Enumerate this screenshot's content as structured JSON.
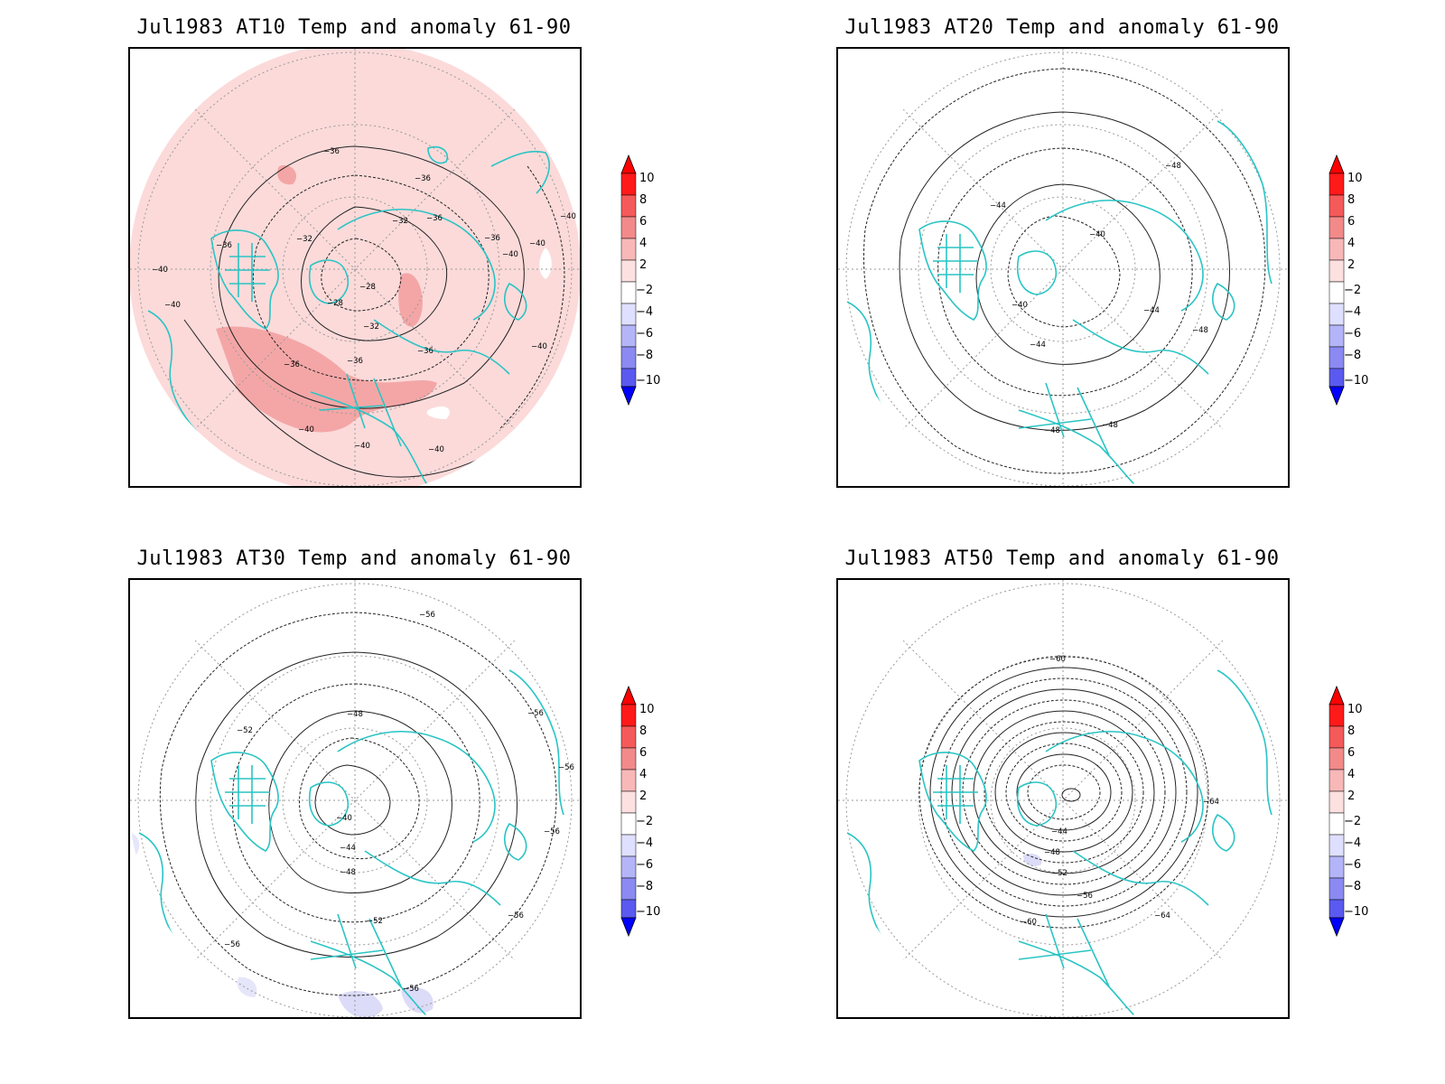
{
  "colorbar": {
    "ticks": [
      "10",
      "8",
      "6",
      "4",
      "2",
      "−2",
      "−4",
      "−6",
      "−8",
      "−10"
    ],
    "colors": [
      "#ff1a1a",
      "#f55a5a",
      "#f28a8a",
      "#f8b8b8",
      "#fde0e0",
      "#ffffff",
      "#dfdfff",
      "#b4b4f8",
      "#8a8af2",
      "#5a5af0",
      "#1a1aff"
    ],
    "top_arrow_color": "#ff0000",
    "bottom_arrow_color": "#0000ff"
  },
  "coastline_color": "#2ac4c4",
  "panels": [
    {
      "title": "Jul1983 AT10 Temp and anomaly 61-90",
      "labels": [
        "−36",
        "−36",
        "−32",
        "−32",
        "−36",
        "−36",
        "−36",
        "−40",
        "−40",
        "−40",
        "−40",
        "−28",
        "−28",
        "−32",
        "−36",
        "−36",
        "−36",
        "−40",
        "−40",
        "−40",
        "−40",
        "−40"
      ],
      "shading": "positive"
    },
    {
      "title": "Jul1983 AT20 Temp and anomaly 61-90",
      "labels": [
        "−48",
        "−44",
        "−40",
        "−40",
        "−44",
        "−44",
        "−48",
        "−48",
        "−48"
      ],
      "shading": "none"
    },
    {
      "title": "Jul1983 AT30 Temp and anomaly 61-90",
      "labels": [
        "−56",
        "−52",
        "−48",
        "−40",
        "−44",
        "−48",
        "−56",
        "−56",
        "−56",
        "−52",
        "−56",
        "−56",
        "−56"
      ],
      "shading": "negative-south"
    },
    {
      "title": "Jul1983 AT50 Temp and anomaly 61-90",
      "labels": [
        "−60",
        "−64",
        "−44",
        "−48",
        "−52",
        "−56",
        "−60",
        "−64"
      ],
      "shading": "negative-small"
    }
  ]
}
